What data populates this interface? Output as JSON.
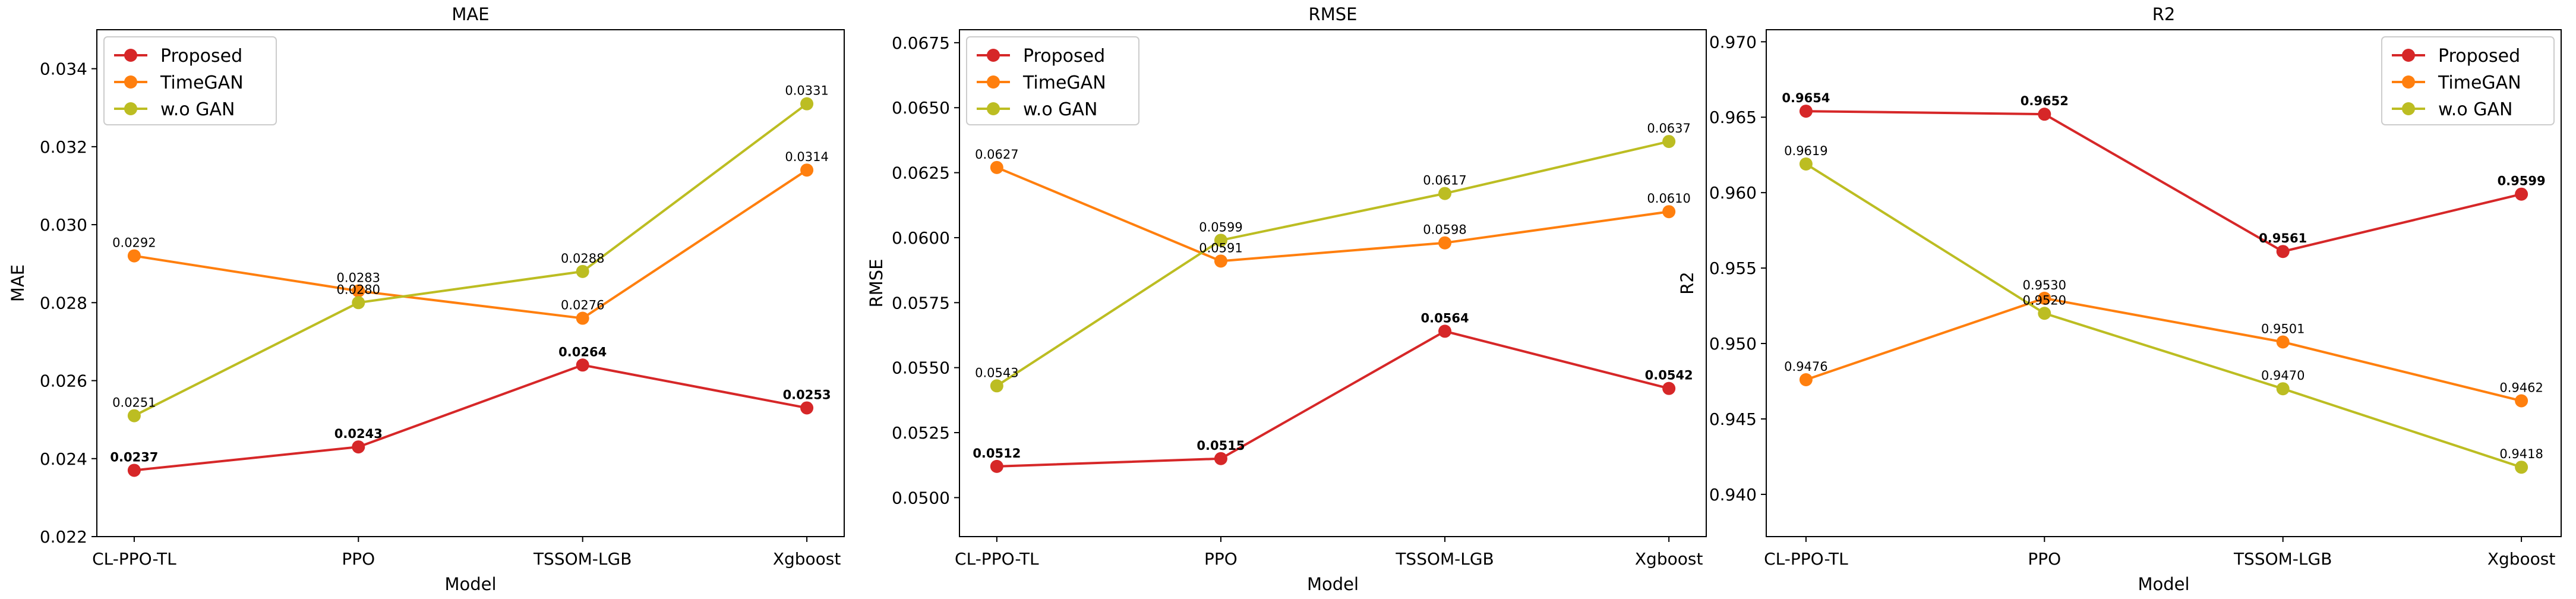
{
  "chart_data": [
    {
      "type": "line",
      "title": "MAE",
      "xlabel": "Model",
      "ylabel": "MAE",
      "categories": [
        "CL-PPO-TL",
        "PPO",
        "TSSOM-LGB",
        "Xgboost"
      ],
      "ylim": [
        0.022,
        0.035
      ],
      "yticks": [
        0.022,
        0.024,
        0.026,
        0.028,
        0.03,
        0.032,
        0.034
      ],
      "tick_decimals": 3,
      "label_decimals": 4,
      "legend": "top-left",
      "series": [
        {
          "name": "Proposed",
          "color": "#d62728",
          "values": [
            0.0237,
            0.0243,
            0.0264,
            0.0253
          ],
          "bold_labels": true
        },
        {
          "name": "TimeGAN",
          "color": "#ff7f0e",
          "values": [
            0.0292,
            0.0283,
            0.0276,
            0.0314
          ],
          "bold_labels": false
        },
        {
          "name": "w.o GAN",
          "color": "#bcbd22",
          "values": [
            0.0251,
            0.028,
            0.0288,
            0.0331
          ],
          "bold_labels": false
        }
      ]
    },
    {
      "type": "line",
      "title": "RMSE",
      "xlabel": "Model",
      "ylabel": "RMSE",
      "categories": [
        "CL-PPO-TL",
        "PPO",
        "TSSOM-LGB",
        "Xgboost"
      ],
      "ylim": [
        0.0485,
        0.068
      ],
      "yticks": [
        0.05,
        0.0525,
        0.055,
        0.0575,
        0.06,
        0.0625,
        0.065,
        0.0675
      ],
      "tick_decimals": 4,
      "label_decimals": 4,
      "legend": "top-left",
      "series": [
        {
          "name": "Proposed",
          "color": "#d62728",
          "values": [
            0.0512,
            0.0515,
            0.0564,
            0.0542
          ],
          "bold_labels": true
        },
        {
          "name": "TimeGAN",
          "color": "#ff7f0e",
          "values": [
            0.0627,
            0.0591,
            0.0598,
            0.061
          ],
          "bold_labels": false
        },
        {
          "name": "w.o GAN",
          "color": "#bcbd22",
          "values": [
            0.0543,
            0.0599,
            0.0617,
            0.0637
          ],
          "bold_labels": false
        }
      ]
    },
    {
      "type": "line",
      "title": "R2",
      "xlabel": "Model",
      "ylabel": "R2",
      "categories": [
        "CL-PPO-TL",
        "PPO",
        "TSSOM-LGB",
        "Xgboost"
      ],
      "ylim": [
        0.9372,
        0.9708
      ],
      "yticks": [
        0.94,
        0.945,
        0.95,
        0.955,
        0.96,
        0.965,
        0.97
      ],
      "tick_decimals": 3,
      "label_decimals": 4,
      "legend": "top-right",
      "series": [
        {
          "name": "Proposed",
          "color": "#d62728",
          "values": [
            0.9654,
            0.9652,
            0.9561,
            0.9599
          ],
          "bold_labels": true
        },
        {
          "name": "TimeGAN",
          "color": "#ff7f0e",
          "values": [
            0.9476,
            0.953,
            0.9501,
            0.9462
          ],
          "bold_labels": false
        },
        {
          "name": "w.o GAN",
          "color": "#bcbd22",
          "values": [
            0.9619,
            0.952,
            0.947,
            0.9418
          ],
          "bold_labels": false
        }
      ]
    }
  ]
}
